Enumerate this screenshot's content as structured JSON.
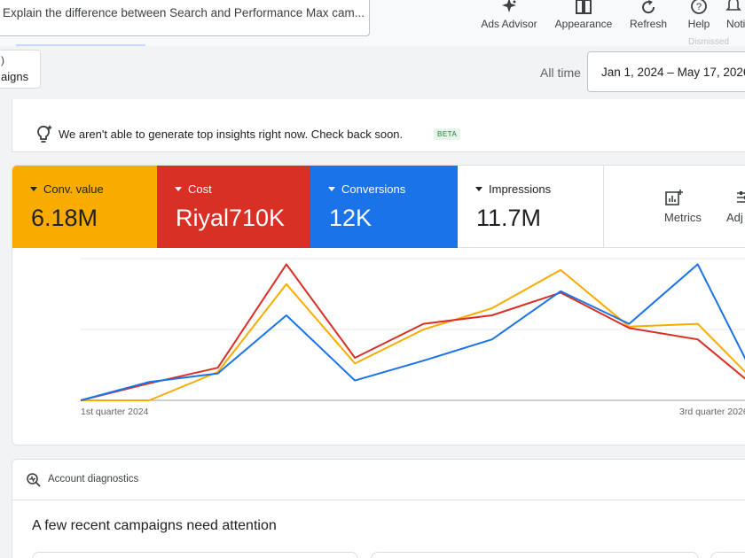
{
  "search": {
    "text": "Explain the difference between Search and Performance Max cam..."
  },
  "toolbar": {
    "items": [
      {
        "label": "Ads Advisor",
        "icon": "sparkle-icon"
      },
      {
        "label": "Appearance",
        "icon": "appearance-icon"
      },
      {
        "label": "Refresh",
        "icon": "refresh-icon"
      },
      {
        "label": "Help",
        "icon": "help-icon"
      },
      {
        "label": "Noti",
        "icon": "notifications-icon"
      }
    ],
    "faint_label": "Dismissed"
  },
  "campaign_chip": {
    "top": ")",
    "label": "aigns"
  },
  "date": {
    "all_time": "All time",
    "range": "Jan 1, 2024 – May 17, 2026"
  },
  "insights": {
    "text": "We aren't able to generate top insights right now. Check back soon.",
    "badge": "BETA"
  },
  "metrics": [
    {
      "name": "Conv. value",
      "value": "6.18M",
      "color": "#f9ab00"
    },
    {
      "name": "Cost",
      "value": "Riyal710K",
      "color": "#d93025"
    },
    {
      "name": "Conversions",
      "value": "12K",
      "color": "#1a73e8"
    },
    {
      "name": "Impressions",
      "value": "11.7M",
      "color": "#ffffff"
    }
  ],
  "metric_tools": {
    "metrics": "Metrics",
    "adjust": "Adj"
  },
  "chart_data": {
    "type": "line",
    "x_tick_labels": [
      "1st quarter 2024",
      "3rd quarter 2026"
    ],
    "grid": true,
    "ylim": [
      0,
      100
    ],
    "series": [
      {
        "color": "#f9ab00",
        "values": [
          0,
          0,
          20,
          82,
          26,
          50,
          65,
          92,
          52,
          54,
          5
        ]
      },
      {
        "color": "#d93025",
        "values": [
          0,
          12,
          23,
          96,
          30,
          54,
          60,
          76,
          51,
          43,
          3
        ]
      },
      {
        "color": "#1a73e8",
        "values": [
          0,
          13,
          19,
          60,
          14,
          28,
          43,
          77,
          54,
          96,
          0
        ]
      }
    ]
  },
  "diagnostics": {
    "title": "Account diagnostics",
    "headline": "A few recent campaigns need attention"
  }
}
